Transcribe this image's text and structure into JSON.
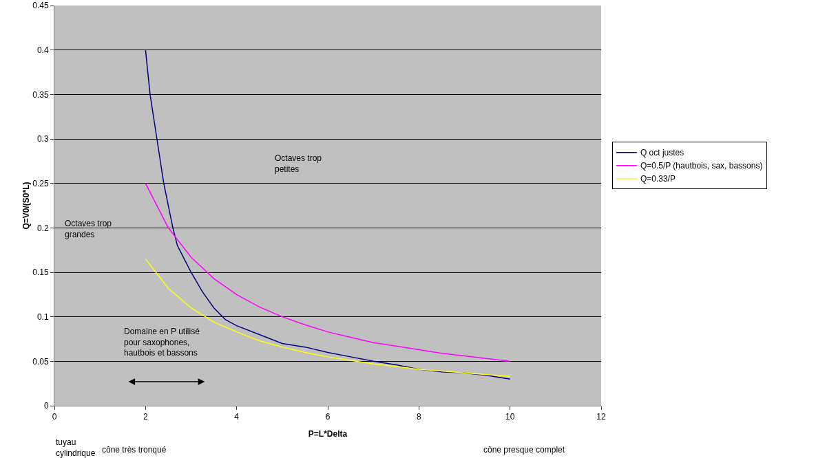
{
  "chart_data": {
    "type": "line",
    "xlabel": "P=L*Delta",
    "ylabel": "Q=V0/(S0*L)",
    "series": [
      {
        "name": "Q oct justes",
        "color": "#000080",
        "x": [
          2,
          2.1,
          2.25,
          2.4,
          2.6,
          2.7,
          2.85,
          3,
          3.25,
          3.5,
          3.75,
          4,
          4.5,
          5,
          5.5,
          6,
          6.5,
          7,
          7.5,
          8,
          8.5,
          9,
          9.5,
          10
        ],
        "values": [
          0.4,
          0.35,
          0.3,
          0.25,
          0.2,
          0.18,
          0.165,
          0.15,
          0.128,
          0.11,
          0.097,
          0.09,
          0.08,
          0.07,
          0.066,
          0.06,
          0.055,
          0.05,
          0.046,
          0.041,
          0.038,
          0.037,
          0.034,
          0.03
        ]
      },
      {
        "name": "Q=0.5/P (hautbois, sax, bassons)",
        "color": "#ff00ff",
        "x": [
          2,
          2.5,
          3,
          3.5,
          4,
          4.5,
          5,
          5.5,
          6,
          6.5,
          7,
          7.5,
          8,
          8.5,
          9,
          9.5,
          10
        ],
        "values": [
          0.25,
          0.2,
          0.167,
          0.143,
          0.125,
          0.111,
          0.1,
          0.091,
          0.083,
          0.077,
          0.071,
          0.067,
          0.063,
          0.059,
          0.056,
          0.053,
          0.05
        ]
      },
      {
        "name": "Q=0.33/P",
        "color": "#ffff00",
        "x": [
          2,
          2.5,
          3,
          3.5,
          4,
          4.5,
          5,
          5.5,
          6,
          6.5,
          7,
          7.5,
          8,
          8.5,
          9,
          9.5,
          10
        ],
        "values": [
          0.165,
          0.132,
          0.11,
          0.094,
          0.083,
          0.073,
          0.066,
          0.06,
          0.055,
          0.051,
          0.047,
          0.044,
          0.041,
          0.039,
          0.037,
          0.035,
          0.033
        ]
      }
    ],
    "xlim": [
      0,
      12
    ],
    "xticks": [
      0,
      2,
      4,
      6,
      8,
      10,
      12
    ],
    "ylim": [
      0,
      0.45
    ],
    "yticks": [
      0,
      0.05,
      0.1,
      0.15,
      0.2,
      0.25,
      0.3,
      0.35,
      0.4,
      0.45
    ],
    "grid": "y",
    "legend": "right",
    "marker": "none",
    "line_style": "solid",
    "annotations": [
      "Octaves trop petites",
      "Octaves trop grandes",
      "Domaine en P utilisé pour saxophones, hautbois et bassons",
      "tuyau cylindrique",
      "cône très tronqué",
      "cône presque complet"
    ]
  }
}
